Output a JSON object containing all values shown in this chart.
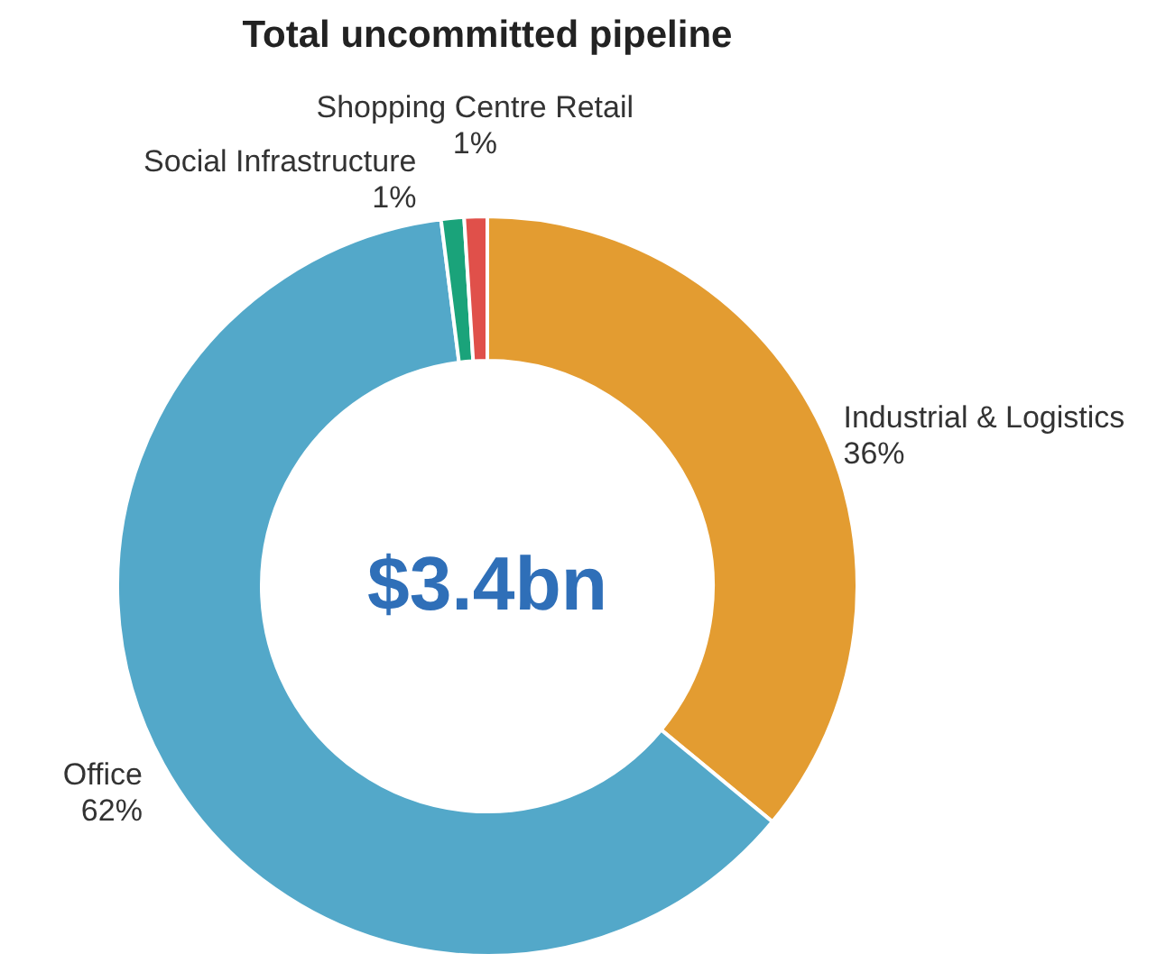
{
  "chart_data": {
    "type": "donut",
    "title": "Total uncommitted pipeline",
    "categories": [
      "Industrial & Logistics",
      "Office",
      "Social Infrastructure",
      "Shopping Centre Retail"
    ],
    "values": [
      36,
      62,
      1,
      1
    ],
    "value_labels": [
      "36%",
      "62%",
      "1%",
      "1%"
    ],
    "colors": [
      "#e39c31",
      "#53a8c9",
      "#1aa37a",
      "#e0504a"
    ],
    "annotations": [
      "$3.4bn"
    ]
  }
}
